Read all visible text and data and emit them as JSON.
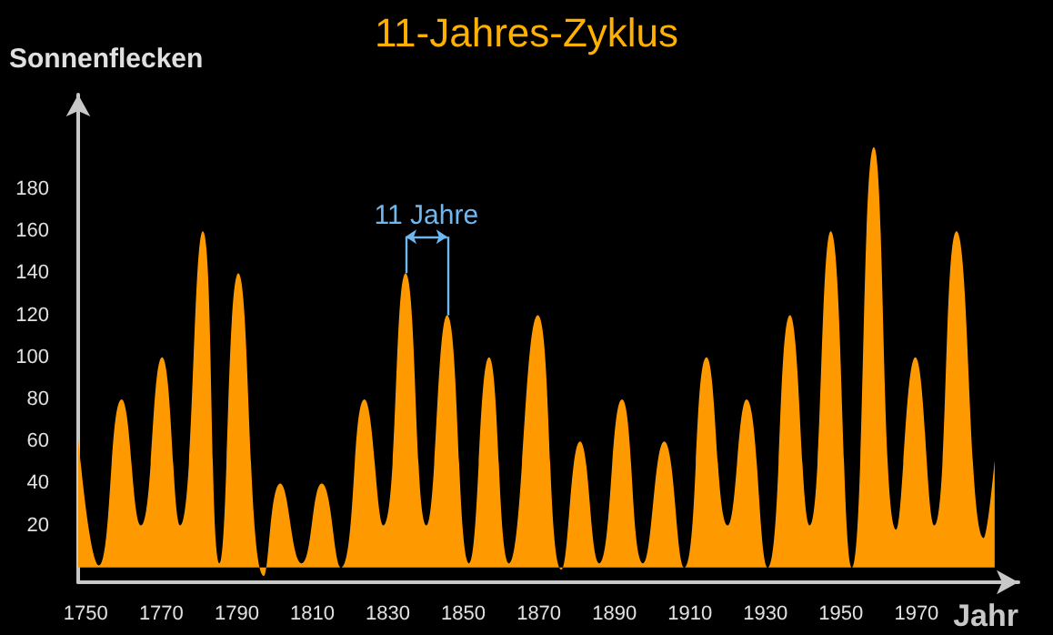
{
  "chart_data": {
    "type": "area",
    "title": "11-Jahres-Zyklus",
    "xlabel": "Jahr",
    "ylabel": "Sonnenflecken",
    "x": [
      1748,
      1753.5,
      1759.5,
      1764.6,
      1770.2,
      1775,
      1781,
      1785.4,
      1790.4,
      1797.2,
      1801.5,
      1807.2,
      1812.5,
      1817.6,
      1823.8,
      1828.8,
      1834.7,
      1840.2,
      1845.7,
      1851.5,
      1856.8,
      1862.1,
      1869.7,
      1876,
      1880.9,
      1886,
      1892,
      1897.6,
      1903.2,
      1908.5,
      1914.4,
      1920,
      1925,
      1930.6,
      1936.5,
      1941.7,
      1947.3,
      1952.9,
      1958.7,
      1964.6,
      1969.7,
      1974.7,
      1980.6,
      1987.8,
      1990.7
    ],
    "series": [
      {
        "color": "#ff9900",
        "values": [
          62,
          1,
          80,
          20,
          100,
          20,
          160,
          2,
          140,
          -4,
          40,
          2,
          40,
          0,
          80,
          20,
          140,
          20,
          120,
          2,
          100,
          2,
          120,
          -1,
          60,
          2,
          80,
          2,
          60,
          0,
          100,
          20,
          80,
          0,
          120,
          20,
          160,
          0,
          200,
          18,
          100,
          20,
          160,
          14,
          51
        ]
      }
    ],
    "xlim": [
      1748,
      1997
    ],
    "ylim": [
      -7,
      225
    ],
    "xticks": [
      1750,
      1770,
      1790,
      1810,
      1830,
      1850,
      1870,
      1890,
      1910,
      1930,
      1950,
      1970
    ],
    "yticks": [
      20,
      40,
      60,
      80,
      100,
      120,
      140,
      160,
      180
    ],
    "annotations": [
      {
        "text": "11 Jahre",
        "x": 1834.7,
        "y": 140
      }
    ],
    "grid": false
  }
}
